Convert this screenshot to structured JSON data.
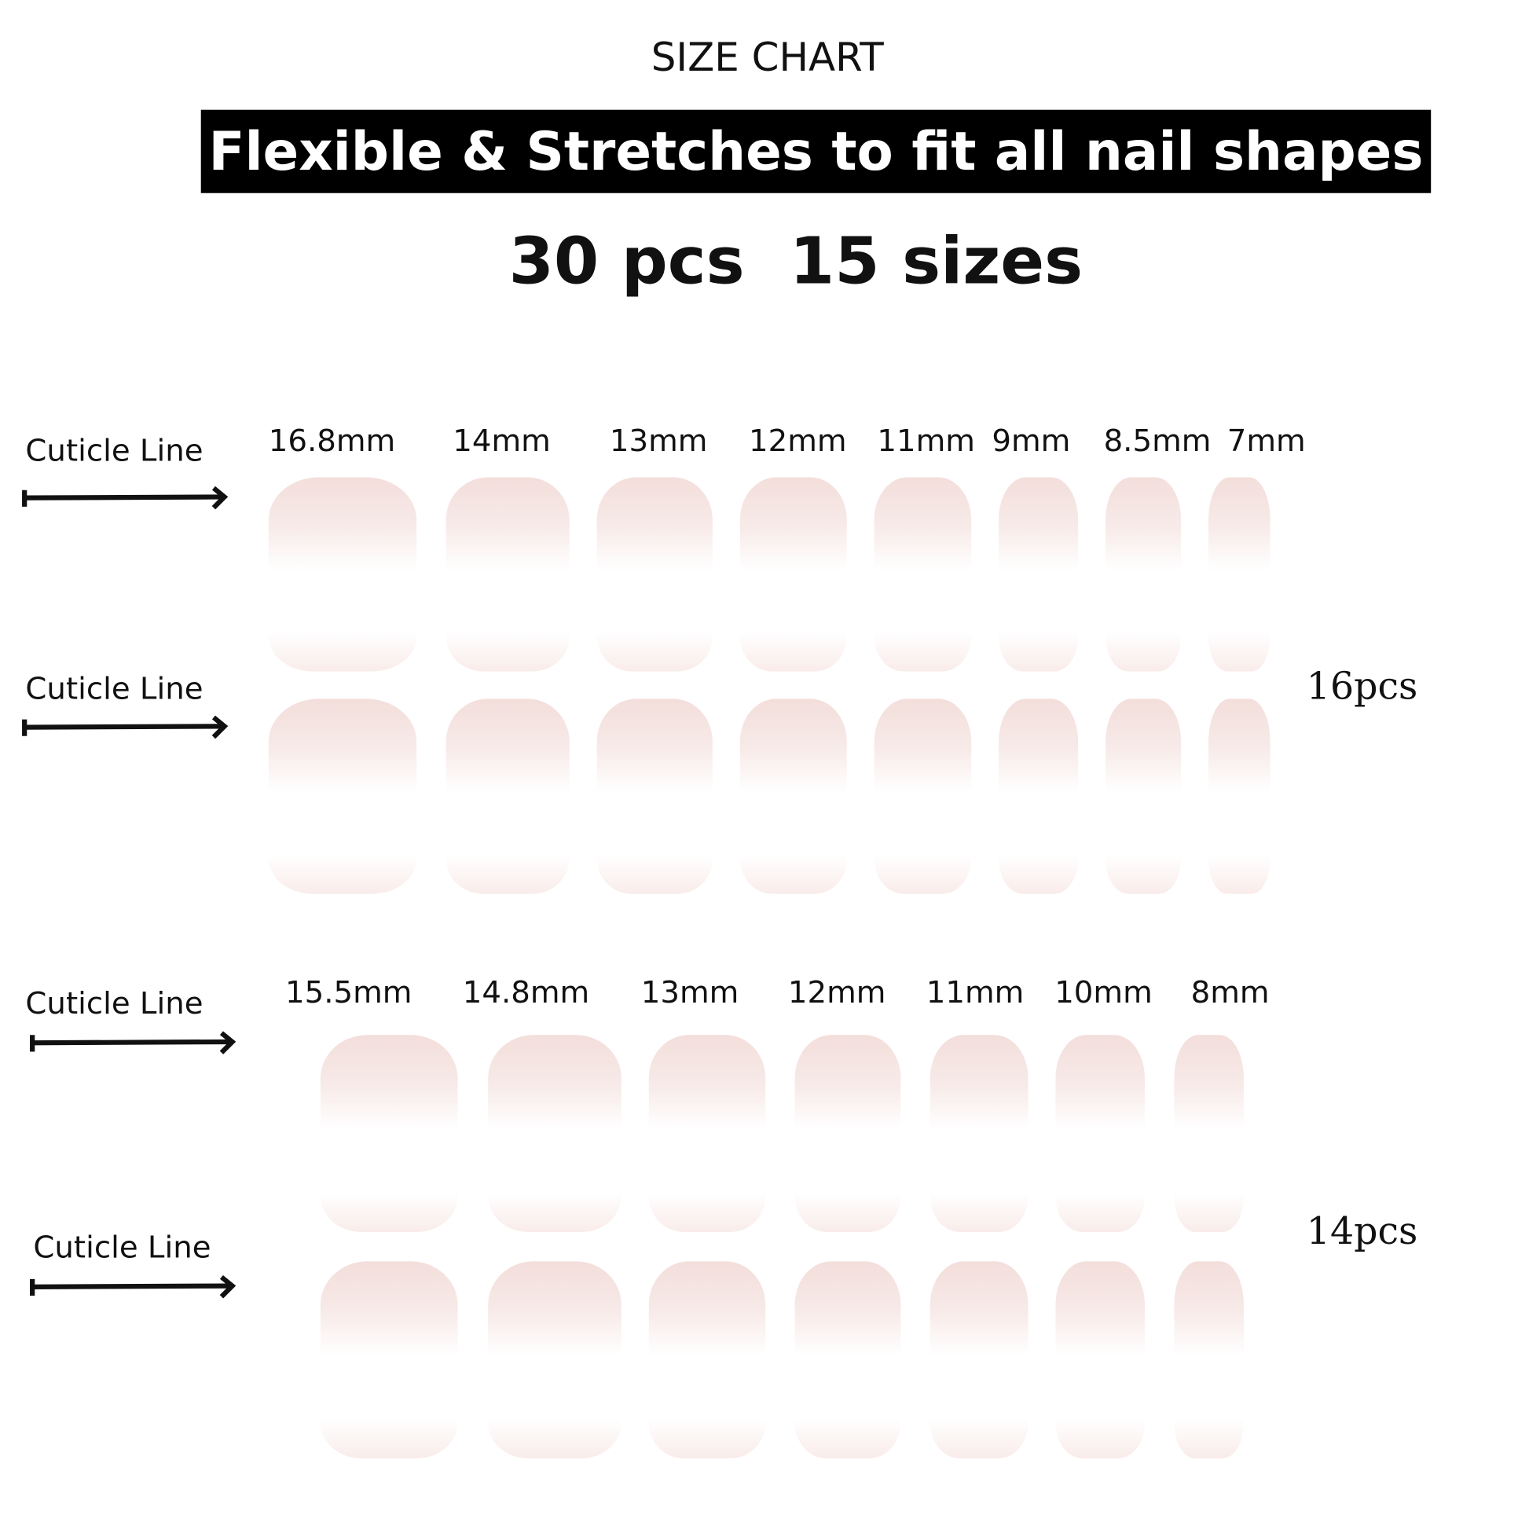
{
  "title": "SIZE CHART",
  "banner": "Flexible & Stretches to fit all nail shapes",
  "count": "30 pcs  15 sizes",
  "cuticle_label": "Cuticle Line",
  "colors": {
    "nail_tint": "#f3dedb",
    "banner_bg": "#000000",
    "banner_text": "#ffffff"
  },
  "group1": {
    "pcs": "16pcs",
    "sizes": [
      "16.8mm",
      "14mm",
      "13mm",
      "12mm",
      "11mm",
      "9mm",
      "8.5mm",
      "7mm"
    ]
  },
  "group2": {
    "pcs": "14pcs",
    "sizes": [
      "15.5mm",
      "14.8mm",
      "13mm",
      "12mm",
      "11mm",
      "10mm",
      "8mm"
    ]
  },
  "icons": {
    "arrow": "arrow-right-icon"
  }
}
